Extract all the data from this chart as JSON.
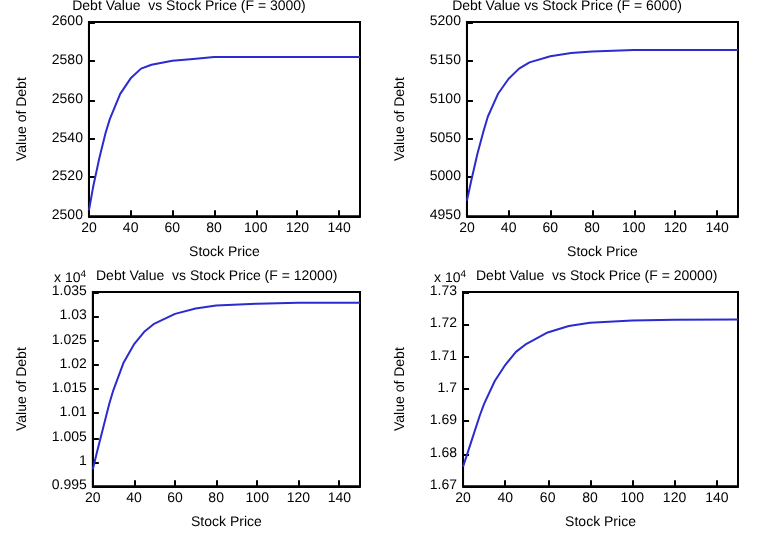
{
  "chart_data": [
    {
      "type": "line",
      "title": "Debt Value  vs Stock Price (F = 3000)",
      "xlabel": "Stock Price",
      "ylabel": "Value of Debt",
      "x": [
        20,
        22,
        25,
        28,
        30,
        35,
        40,
        45,
        50,
        60,
        70,
        80,
        100,
        120,
        150
      ],
      "series": [
        {
          "color": "#2b2bd0",
          "values": [
            2503,
            2515,
            2530,
            2543,
            2550,
            2563,
            2571,
            2576,
            2578,
            2580,
            2581,
            2582,
            2582,
            2582,
            2582
          ]
        }
      ],
      "xlim": [
        20,
        150
      ],
      "xticks": [
        20,
        40,
        60,
        80,
        100,
        120,
        140
      ],
      "ylim": [
        2500,
        2600
      ],
      "yticks": [
        2500,
        2520,
        2540,
        2560,
        2580,
        2600
      ],
      "grid": false,
      "marker": "none",
      "line_style": "solid"
    },
    {
      "type": "line",
      "title": "Debt Value vs Stock Price (F = 6000)",
      "xlabel": "Stock Price",
      "ylabel": "Value of Debt",
      "x": [
        20,
        22,
        25,
        28,
        30,
        35,
        40,
        45,
        50,
        60,
        70,
        80,
        100,
        120,
        150
      ],
      "series": [
        {
          "color": "#2b2bd0",
          "values": [
            4970,
            4995,
            5030,
            5060,
            5078,
            5108,
            5127,
            5140,
            5148,
            5156,
            5160,
            5162,
            5164,
            5164,
            5164
          ]
        }
      ],
      "xlim": [
        20,
        150
      ],
      "xticks": [
        20,
        40,
        60,
        80,
        100,
        120,
        140
      ],
      "ylim": [
        4950,
        5200
      ],
      "yticks": [
        4950,
        5000,
        5050,
        5100,
        5150,
        5200
      ],
      "grid": false,
      "marker": "none",
      "line_style": "solid"
    },
    {
      "type": "line",
      "title": "Debt Value  vs Stock Price (F = 12000)",
      "xlabel": "Stock Price",
      "ylabel": "Value of Debt",
      "annotations": [
        "x 10$^{4}$"
      ],
      "x": [
        20,
        22,
        25,
        28,
        30,
        35,
        40,
        45,
        50,
        60,
        70,
        80,
        100,
        120,
        150
      ],
      "series": [
        {
          "color": "#2b2bd0",
          "values": [
            0.9985,
            1.002,
            1.007,
            1.012,
            1.0148,
            1.0205,
            1.0242,
            1.0268,
            1.0285,
            1.0305,
            1.0316,
            1.0322,
            1.0326,
            1.0328,
            1.0328
          ]
        }
      ],
      "xlim": [
        20,
        150
      ],
      "xticks": [
        20,
        40,
        60,
        80,
        100,
        120,
        140
      ],
      "ylim": [
        0.995,
        1.035
      ],
      "yticks": [
        0.995,
        1,
        1.005,
        1.01,
        1.015,
        1.02,
        1.025,
        1.03,
        1.035
      ],
      "grid": false,
      "marker": "none",
      "line_style": "solid"
    },
    {
      "type": "line",
      "title": "Debt Value  vs Stock Price (F = 20000)",
      "xlabel": "Stock Price",
      "ylabel": "Value of Debt",
      "annotations": [
        "x 10$^{4}$"
      ],
      "x": [
        20,
        22,
        25,
        28,
        30,
        35,
        40,
        45,
        50,
        60,
        70,
        80,
        100,
        120,
        150
      ],
      "series": [
        {
          "color": "#2b2bd0",
          "values": [
            1.676,
            1.68,
            1.686,
            1.692,
            1.6955,
            1.7025,
            1.7075,
            1.7115,
            1.714,
            1.7175,
            1.7195,
            1.7205,
            1.7212,
            1.7214,
            1.7215
          ]
        }
      ],
      "xlim": [
        20,
        150
      ],
      "xticks": [
        20,
        40,
        60,
        80,
        100,
        120,
        140
      ],
      "ylim": [
        1.67,
        1.73
      ],
      "yticks": [
        1.67,
        1.68,
        1.69,
        1.7,
        1.71,
        1.72,
        1.73
      ],
      "grid": false,
      "marker": "none",
      "line_style": "solid"
    }
  ]
}
